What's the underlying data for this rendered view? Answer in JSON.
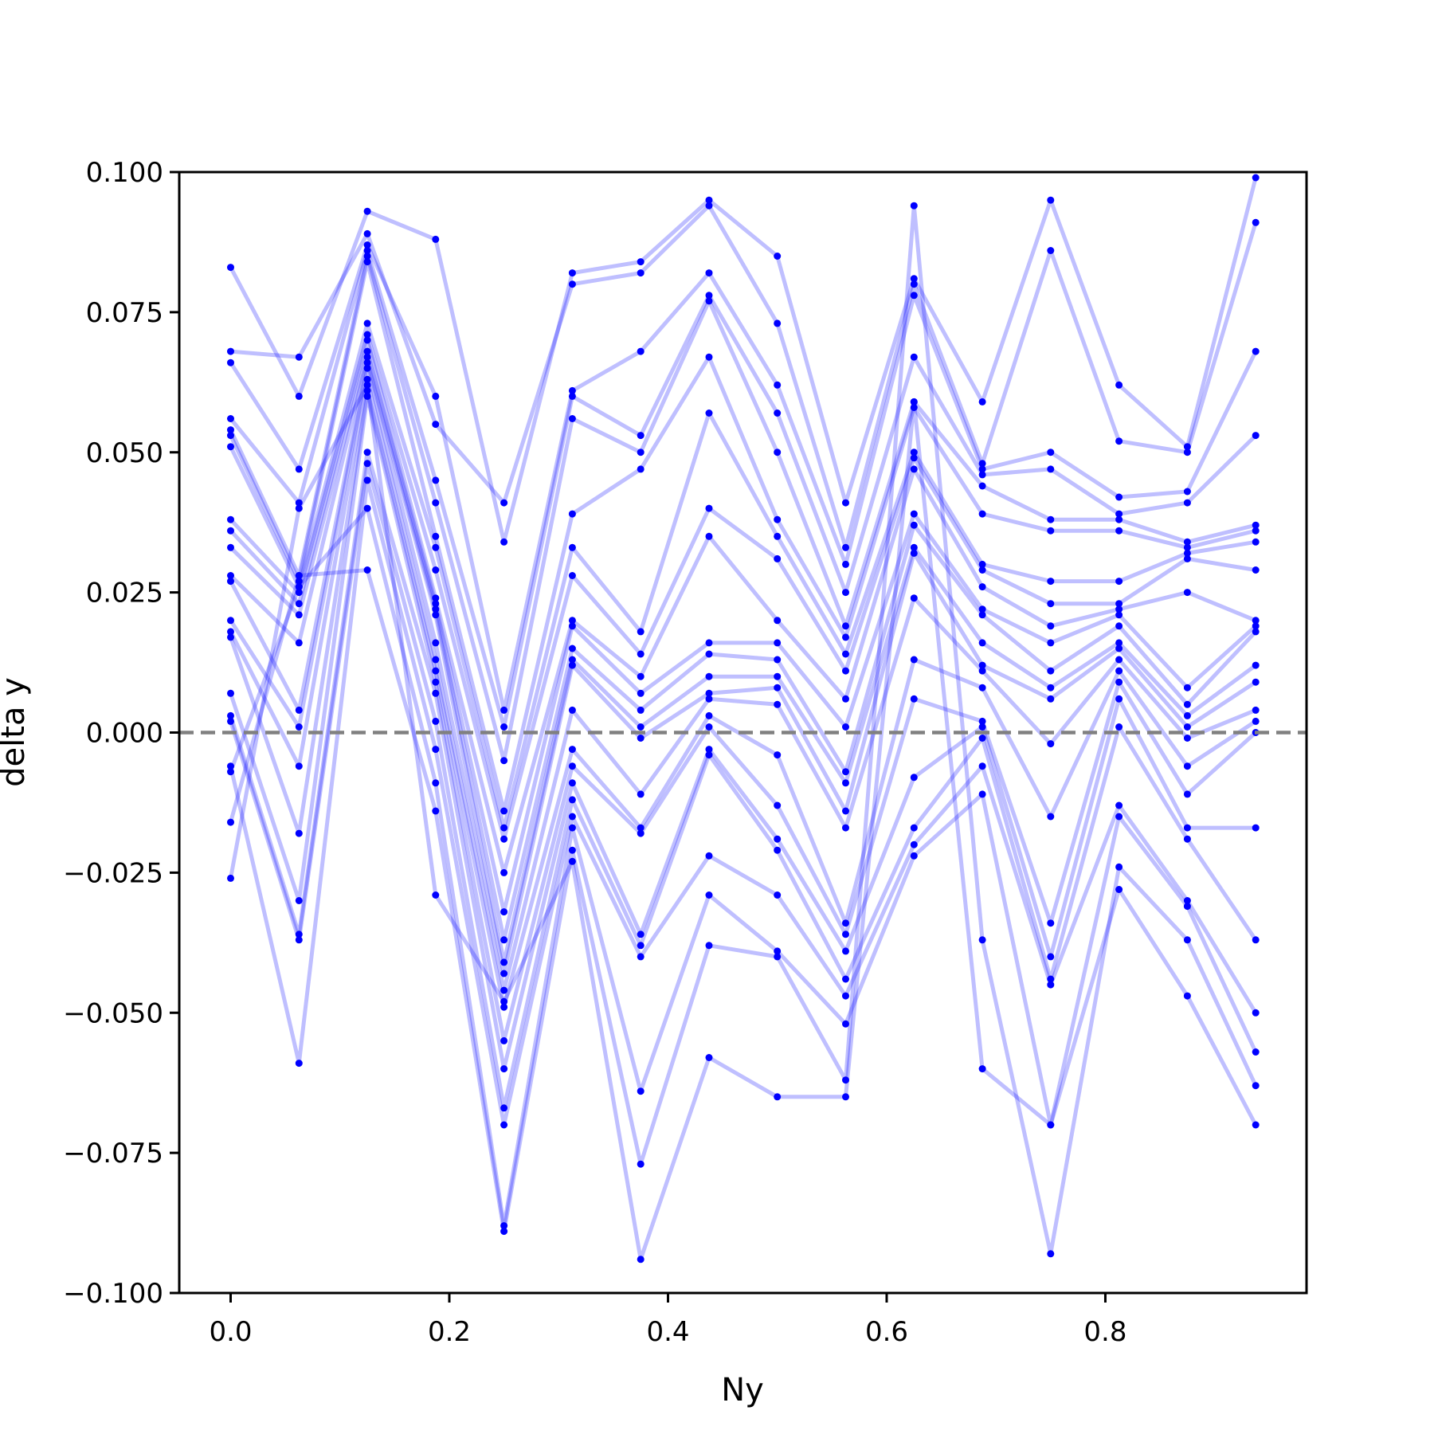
{
  "chart_data": {
    "type": "line",
    "title": "",
    "xlabel": "Ny",
    "ylabel": "delta y",
    "xlim": [
      -0.047,
      0.984
    ],
    "ylim": [
      -0.1,
      0.1
    ],
    "xticks": [
      "0.0",
      "0.2",
      "0.4",
      "0.6",
      "0.8"
    ],
    "yticks": [
      "0.100",
      "0.075",
      "0.050",
      "0.025",
      "0.000",
      "−0.025",
      "−0.050",
      "−0.075",
      "−0.100"
    ],
    "reference_line": {
      "y": 0.0,
      "style": "dashed",
      "color": "#808080"
    },
    "series_color": "#0000ff",
    "line_alpha": 0.25,
    "grid": false,
    "legend": "none",
    "x": [
      0.0,
      0.0625,
      0.125,
      0.1875,
      0.25,
      0.3125,
      0.375,
      0.4375,
      0.5,
      0.5625,
      0.625,
      0.6875,
      0.75,
      0.8125,
      0.875,
      0.9375
    ],
    "series": [
      {
        "values": [
          0.083,
          0.06,
          0.093,
          0.088,
          0.034,
          0.082,
          0.084,
          0.095,
          0.085,
          0.041,
          0.081,
          0.059,
          0.095,
          0.062,
          0.051,
          0.099
        ]
      },
      {
        "values": [
          0.068,
          0.067,
          0.089,
          0.055,
          0.041,
          0.08,
          0.082,
          0.094,
          0.073,
          0.033,
          0.08,
          0.048,
          0.086,
          0.052,
          0.05,
          0.091
        ]
      },
      {
        "values": [
          0.066,
          0.047,
          0.087,
          0.06,
          0.004,
          0.061,
          0.068,
          0.082,
          0.062,
          0.03,
          0.078,
          0.047,
          0.05,
          0.042,
          0.043,
          0.068
        ]
      },
      {
        "values": [
          0.056,
          0.041,
          0.086,
          0.045,
          0.001,
          0.06,
          0.053,
          0.078,
          0.057,
          0.025,
          0.067,
          0.046,
          0.047,
          0.039,
          0.041,
          0.053
        ]
      },
      {
        "values": [
          0.054,
          0.028,
          0.085,
          0.041,
          -0.005,
          0.056,
          0.05,
          0.077,
          0.05,
          0.019,
          0.059,
          0.044,
          0.038,
          0.038,
          0.034,
          0.037
        ]
      },
      {
        "values": [
          0.053,
          0.027,
          0.084,
          0.035,
          -0.014,
          0.039,
          0.047,
          0.067,
          0.038,
          0.017,
          0.058,
          0.039,
          0.036,
          0.036,
          0.033,
          0.036
        ]
      },
      {
        "values": [
          0.051,
          0.026,
          0.073,
          0.033,
          -0.017,
          0.033,
          0.018,
          0.057,
          0.035,
          0.014,
          0.05,
          0.03,
          0.027,
          0.027,
          0.032,
          0.034
        ]
      },
      {
        "values": [
          0.038,
          0.025,
          0.071,
          0.029,
          -0.019,
          0.028,
          0.014,
          0.04,
          0.031,
          0.011,
          0.049,
          0.029,
          0.023,
          0.023,
          0.031,
          0.029
        ]
      },
      {
        "values": [
          0.036,
          0.023,
          0.07,
          0.024,
          -0.025,
          0.02,
          0.01,
          0.035,
          0.02,
          0.006,
          0.047,
          0.026,
          0.019,
          0.022,
          0.025,
          0.02
        ]
      },
      {
        "values": [
          0.033,
          0.021,
          0.068,
          0.023,
          -0.032,
          0.019,
          0.007,
          0.016,
          0.016,
          0.001,
          0.039,
          0.022,
          0.016,
          0.021,
          0.008,
          0.019
        ]
      },
      {
        "values": [
          0.028,
          0.016,
          0.067,
          0.022,
          -0.037,
          0.015,
          0.004,
          0.014,
          0.013,
          -0.007,
          0.037,
          0.021,
          0.011,
          0.019,
          0.005,
          0.018
        ]
      },
      {
        "values": [
          0.027,
          0.004,
          0.066,
          0.021,
          -0.041,
          0.013,
          0.001,
          0.01,
          0.01,
          -0.009,
          0.033,
          0.016,
          0.008,
          0.016,
          0.003,
          0.012
        ]
      },
      {
        "values": [
          0.02,
          0.001,
          0.065,
          0.016,
          -0.043,
          0.012,
          -0.001,
          0.007,
          0.008,
          -0.014,
          0.032,
          0.012,
          0.006,
          0.015,
          0.001,
          0.009
        ]
      },
      {
        "values": [
          0.018,
          -0.006,
          0.063,
          0.013,
          -0.046,
          0.004,
          -0.011,
          0.006,
          0.005,
          -0.017,
          0.024,
          0.011,
          -0.002,
          0.013,
          -0.001,
          0.004
        ]
      },
      {
        "values": [
          0.017,
          -0.018,
          0.061,
          0.011,
          -0.049,
          -0.003,
          -0.017,
          0.003,
          -0.004,
          -0.034,
          0.013,
          0.008,
          -0.015,
          0.011,
          -0.006,
          0.002
        ]
      },
      {
        "values": [
          0.007,
          -0.03,
          0.06,
          0.009,
          -0.055,
          -0.006,
          -0.018,
          0.001,
          -0.013,
          -0.036,
          0.006,
          0.002,
          -0.034,
          0.009,
          -0.011,
          0.0
        ]
      },
      {
        "values": [
          0.003,
          -0.036,
          0.05,
          0.007,
          -0.06,
          -0.009,
          -0.036,
          -0.003,
          -0.019,
          -0.039,
          -0.008,
          0.001,
          -0.04,
          0.006,
          -0.017,
          -0.017
        ]
      },
      {
        "values": [
          0.002,
          -0.037,
          0.048,
          0.002,
          -0.067,
          -0.012,
          -0.038,
          -0.004,
          -0.021,
          -0.044,
          -0.017,
          -0.001,
          -0.044,
          0.001,
          -0.019,
          -0.037
        ]
      },
      {
        "values": [
          -0.006,
          -0.059,
          0.045,
          -0.003,
          -0.07,
          -0.015,
          -0.04,
          -0.022,
          -0.029,
          -0.047,
          -0.02,
          -0.006,
          -0.045,
          -0.013,
          -0.03,
          -0.05
        ]
      },
      {
        "values": [
          -0.007,
          0.026,
          0.04,
          -0.009,
          -0.088,
          -0.017,
          -0.064,
          -0.029,
          -0.039,
          -0.052,
          -0.022,
          -0.011,
          -0.07,
          -0.015,
          -0.031,
          -0.057
        ]
      },
      {
        "values": [
          -0.016,
          0.028,
          0.029,
          -0.014,
          -0.089,
          -0.021,
          -0.077,
          -0.038,
          -0.04,
          -0.062,
          0.094,
          -0.037,
          -0.093,
          -0.024,
          -0.037,
          -0.063
        ]
      },
      {
        "values": [
          -0.026,
          0.04,
          0.062,
          -0.029,
          -0.048,
          -0.023,
          -0.094,
          -0.058,
          -0.065,
          -0.065,
          0.059,
          -0.06,
          -0.07,
          -0.028,
          -0.047,
          -0.07
        ]
      }
    ]
  }
}
